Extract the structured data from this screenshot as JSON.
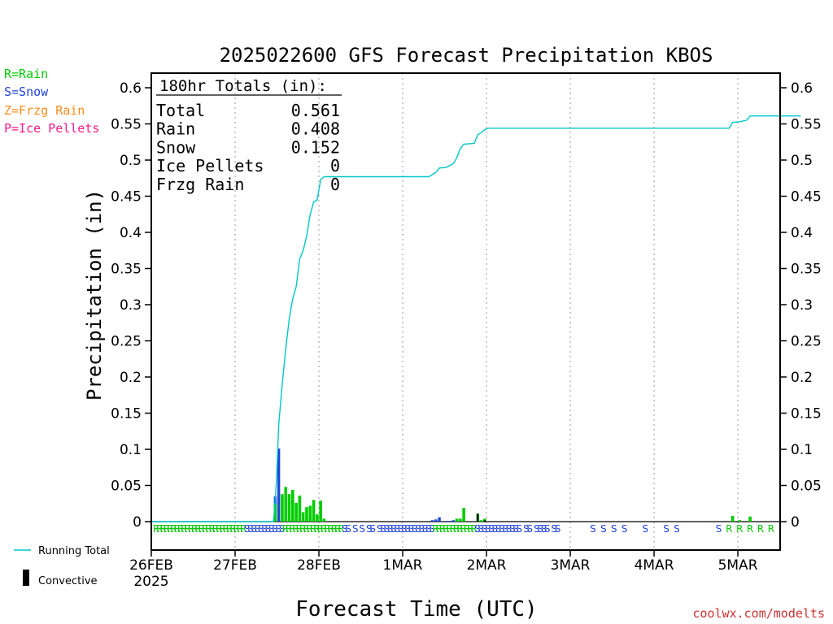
{
  "chart_data": {
    "type": "bar",
    "title": "2025022600 GFS Forecast Precipitation KBOS",
    "xlabel": "Forecast Time (UTC)",
    "ylabel": "Precipitation (in)",
    "ylim": [
      0,
      0.625
    ],
    "yticks": [
      0,
      0.05,
      0.1,
      0.15,
      0.2,
      0.25,
      0.3,
      0.35,
      0.4,
      0.45,
      0.5,
      0.55,
      0.6
    ],
    "ytick_labels": [
      "0",
      "0.05",
      "0.1",
      "0.15",
      "0.2",
      "0.25",
      "0.3",
      "0.35",
      "0.4",
      "0.45",
      "0.5",
      "0.55",
      "0.6"
    ],
    "xlim_hours": [
      0,
      186
    ],
    "xticks": [
      {
        "hour": 0,
        "label": "26FEB"
      },
      {
        "hour": 24,
        "label": "27FEB"
      },
      {
        "hour": 48,
        "label": "28FEB"
      },
      {
        "hour": 72,
        "label": "1MAR"
      },
      {
        "hour": 96,
        "label": "2MAR"
      },
      {
        "hour": 120,
        "label": "3MAR"
      },
      {
        "hour": 144,
        "label": "4MAR"
      },
      {
        "hour": 168,
        "label": "5MAR"
      }
    ],
    "year_label": "2025",
    "grid": true,
    "colors": {
      "rain": "#00cc00",
      "snow": "#2244dd",
      "running_total": "#00c8c8",
      "convective": "#000000",
      "zfrzg": "#ff8c1a",
      "ice": "#ff1a8c"
    },
    "legend_ptypes": [
      {
        "label": "R=Rain",
        "color": "#00cc00"
      },
      {
        "label": "S=Snow",
        "color": "#2244dd"
      },
      {
        "label": "Z=Frzg Rain",
        "color": "#ff8c1a"
      },
      {
        "label": "P=Ice Pellets",
        "color": "#ff1a8c"
      }
    ],
    "legend_lines": [
      {
        "label": "Running Total"
      },
      {
        "label": "Convective"
      }
    ],
    "totals_box": {
      "header": "180hr Totals (in):",
      "rows": [
        {
          "label": "Total",
          "value": "0.561"
        },
        {
          "label": "Rain",
          "value": "0.408"
        },
        {
          "label": "Snow",
          "value": "0.152"
        },
        {
          "label": "Ice Pellets",
          "value": "0"
        },
        {
          "label": "Frzg Rain",
          "value": "0"
        }
      ]
    },
    "series": [
      {
        "name": "Snow",
        "type": "S",
        "points": [
          {
            "hour": 35.5,
            "value": 0.035
          },
          {
            "hour": 36.5,
            "value": 0.101
          },
          {
            "hour": 80.5,
            "value": 0.002
          },
          {
            "hour": 81.5,
            "value": 0.003
          },
          {
            "hour": 82.5,
            "value": 0.006
          },
          {
            "hour": 84.5,
            "value": 0.001
          },
          {
            "hour": 85.5,
            "value": 0.001
          },
          {
            "hour": 86.5,
            "value": 0.002
          }
        ]
      },
      {
        "name": "Rain",
        "type": "R",
        "points": [
          {
            "hour": 35.5,
            "value": 0.025
          },
          {
            "hour": 37.5,
            "value": 0.038
          },
          {
            "hour": 38.5,
            "value": 0.048
          },
          {
            "hour": 39.5,
            "value": 0.038
          },
          {
            "hour": 40.5,
            "value": 0.044
          },
          {
            "hour": 41.5,
            "value": 0.026
          },
          {
            "hour": 42.5,
            "value": 0.036
          },
          {
            "hour": 43.5,
            "value": 0.013
          },
          {
            "hour": 44.5,
            "value": 0.02
          },
          {
            "hour": 45.5,
            "value": 0.022
          },
          {
            "hour": 46.5,
            "value": 0.03
          },
          {
            "hour": 47.5,
            "value": 0.01
          },
          {
            "hour": 48.5,
            "value": 0.029
          },
          {
            "hour": 49.5,
            "value": 0.004
          },
          {
            "hour": 87.5,
            "value": 0.004
          },
          {
            "hour": 88.5,
            "value": 0.004
          },
          {
            "hour": 89.5,
            "value": 0.019
          },
          {
            "hour": 93.5,
            "value": 0.011
          },
          {
            "hour": 94.5,
            "value": 0.002
          },
          {
            "hour": 95.5,
            "value": 0.004
          },
          {
            "hour": 166.5,
            "value": 0.008
          },
          {
            "hour": 168.5,
            "value": 0.002
          },
          {
            "hour": 171.5,
            "value": 0.007
          }
        ]
      },
      {
        "name": "Convective",
        "type": "C",
        "points": [
          {
            "hour": 93.5,
            "value": 0.011
          },
          {
            "hour": 95.5,
            "value": 0.002
          }
        ]
      }
    ],
    "running_total": [
      [
        0,
        0
      ],
      [
        35,
        0
      ],
      [
        35.6,
        0.035
      ],
      [
        36,
        0.075
      ],
      [
        36.5,
        0.135
      ],
      [
        37.5,
        0.19
      ],
      [
        38.5,
        0.238
      ],
      [
        39.5,
        0.28
      ],
      [
        40.5,
        0.308
      ],
      [
        41.5,
        0.325
      ],
      [
        42.5,
        0.363
      ],
      [
        43.5,
        0.375
      ],
      [
        44.5,
        0.395
      ],
      [
        45.5,
        0.425
      ],
      [
        46.5,
        0.442
      ],
      [
        47.5,
        0.445
      ],
      [
        48.5,
        0.473
      ],
      [
        49.5,
        0.477
      ],
      [
        79.5,
        0.477
      ],
      [
        81.5,
        0.483
      ],
      [
        82.5,
        0.489
      ],
      [
        84.5,
        0.49
      ],
      [
        86.5,
        0.495
      ],
      [
        87.5,
        0.503
      ],
      [
        88.5,
        0.516
      ],
      [
        89.5,
        0.522
      ],
      [
        92.5,
        0.523
      ],
      [
        93.5,
        0.535
      ],
      [
        94.5,
        0.538
      ],
      [
        95.5,
        0.542
      ],
      [
        96.5,
        0.544
      ],
      [
        165.5,
        0.544
      ],
      [
        166.5,
        0.552
      ],
      [
        168.5,
        0.553
      ],
      [
        170.5,
        0.555
      ],
      [
        171.5,
        0.561
      ],
      [
        186,
        0.561
      ]
    ],
    "ptype_strip": "RRRRRRRRRRRRRRRRRRRRRRRRRRSSSSSSSSSSSRRRRRRRRRRRRRRRRRSS S S SS SSSSSSSSSSSSSSSSRRRRRRRRRRRRSSSSSSSSSSSSS SS SSSS SS",
    "ptype_strip_late": [
      {
        "hour": 126.5,
        "type": "S"
      },
      {
        "hour": 129.5,
        "type": "S"
      },
      {
        "hour": 132.5,
        "type": "S"
      },
      {
        "hour": 135.5,
        "type": "S"
      },
      {
        "hour": 141.5,
        "type": "S"
      },
      {
        "hour": 147.5,
        "type": "S"
      },
      {
        "hour": 150.5,
        "type": "S"
      },
      {
        "hour": 162.5,
        "type": "S"
      },
      {
        "hour": 165.5,
        "type": "R"
      },
      {
        "hour": 168.5,
        "type": "R"
      },
      {
        "hour": 171.5,
        "type": "R"
      },
      {
        "hour": 174.5,
        "type": "R"
      },
      {
        "hour": 177.5,
        "type": "R"
      }
    ],
    "watermark": "coolwx.com/modelts"
  }
}
